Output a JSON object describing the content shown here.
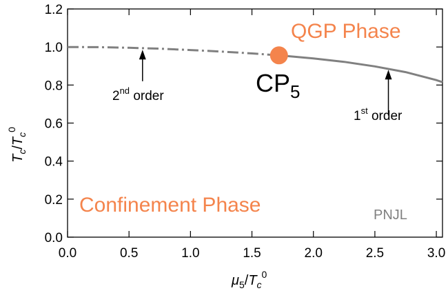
{
  "colors": {
    "curve": "#808080",
    "accent": "#f4844c",
    "axis": "#000000"
  },
  "chart_data": {
    "type": "line",
    "xlabel_parts": {
      "mu": "μ",
      "sub5": "5",
      "slash": "/",
      "T": "T",
      "subc": "c",
      "sup0": "0"
    },
    "ylabel_parts": {
      "T1": "T",
      "subc1": "c",
      "slash": "/",
      "T2": "T",
      "subc2": "c",
      "sup0": "0"
    },
    "xlim": [
      0.0,
      3.05
    ],
    "ylim": [
      0.0,
      1.2
    ],
    "x_ticks": [
      0.0,
      0.5,
      1.0,
      1.5,
      2.0,
      2.5,
      3.0
    ],
    "x_tick_labels": [
      "0.0",
      "0.5",
      "1.0",
      "1.5",
      "2.0",
      "2.5",
      "3.0"
    ],
    "y_ticks": [
      0.0,
      0.2,
      0.4,
      0.6,
      0.8,
      1.0,
      1.2
    ],
    "y_tick_labels": [
      "0.0",
      "0.2",
      "0.4",
      "0.6",
      "0.8",
      "1.0",
      "1.2"
    ],
    "series": [
      {
        "style": "dash-dot",
        "order": "2nd",
        "x": [
          0.0,
          0.25,
          0.5,
          0.75,
          1.0,
          1.25,
          1.5,
          1.72
        ],
        "y": [
          1.0,
          0.999,
          0.996,
          0.991,
          0.984,
          0.976,
          0.966,
          0.956
        ]
      },
      {
        "style": "solid",
        "order": "1st",
        "x": [
          1.72,
          2.0,
          2.25,
          2.5,
          2.75,
          3.0,
          3.05
        ],
        "y": [
          0.956,
          0.94,
          0.922,
          0.898,
          0.868,
          0.826,
          0.815
        ]
      }
    ],
    "critical_point": {
      "x": 1.72,
      "y": 0.956,
      "label_main": "CP",
      "label_sub": "5"
    },
    "annotations": {
      "second_order": {
        "base": "2",
        "sup": "nd",
        "rest": " order",
        "arrow_x": 0.61,
        "arrow_y_from": 0.82,
        "arrow_y_to": 0.985
      },
      "first_order": {
        "base": "1",
        "sup": "st",
        "rest": " order",
        "arrow_x": 2.61,
        "arrow_y_from": 0.64,
        "arrow_y_to": 0.88
      }
    },
    "labels": {
      "qgp": "QGP Phase",
      "confinement": "Confinement Phase",
      "model": "PNJL"
    }
  }
}
